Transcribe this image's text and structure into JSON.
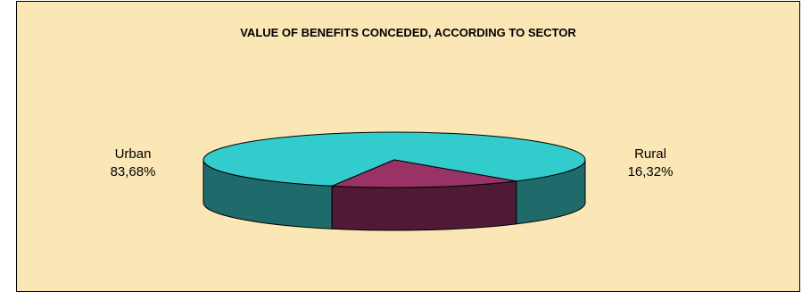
{
  "chart_data": {
    "type": "pie",
    "title": "VALUE OF BENEFITS CONCEDED, ACCORDING TO SECTOR",
    "slices": [
      {
        "label": "Urban",
        "value": 83.68,
        "value_label": "83,68%",
        "color": "#33cccc",
        "side_color": "#1f6b6b"
      },
      {
        "label": "Rural",
        "value": 16.32,
        "value_label": "16,32%",
        "color": "#993366",
        "side_color": "#4f1a35"
      }
    ],
    "style": "3d",
    "legend": "none"
  }
}
